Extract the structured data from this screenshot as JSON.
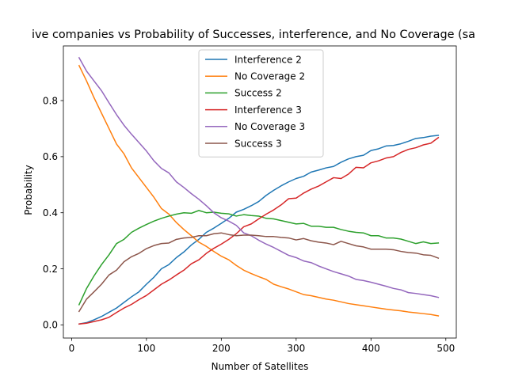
{
  "chart_data": {
    "type": "line",
    "title": "ive companies vs Probability of Successes, interference, and No Coverage (sa",
    "xlabel": "Number of Satellites",
    "ylabel": "Probability",
    "xlim": [
      -11,
      514
    ],
    "ylim": [
      -0.047,
      0.995
    ],
    "xticks": [
      0,
      100,
      200,
      300,
      400,
      500
    ],
    "yticks": [
      0.0,
      0.2,
      0.4,
      0.6,
      0.8
    ],
    "grid": false,
    "legend_position": "upper center",
    "x": [
      10,
      20,
      30,
      40,
      50,
      60,
      70,
      80,
      90,
      100,
      110,
      120,
      130,
      140,
      150,
      160,
      170,
      180,
      190,
      200,
      210,
      220,
      230,
      240,
      250,
      260,
      270,
      280,
      290,
      300,
      310,
      320,
      330,
      340,
      350,
      360,
      370,
      380,
      390,
      400,
      410,
      420,
      430,
      440,
      450,
      460,
      470,
      480,
      490
    ],
    "series": [
      {
        "name": "Interference 2",
        "color": "#1f77b4",
        "values": [
          0.003,
          0.008,
          0.018,
          0.03,
          0.045,
          0.06,
          0.08,
          0.1,
          0.118,
          0.145,
          0.17,
          0.2,
          0.215,
          0.24,
          0.26,
          0.285,
          0.305,
          0.33,
          0.345,
          0.362,
          0.38,
          0.402,
          0.412,
          0.425,
          0.44,
          0.462,
          0.48,
          0.496,
          0.51,
          0.522,
          0.53,
          0.545,
          0.552,
          0.56,
          0.565,
          0.58,
          0.592,
          0.6,
          0.605,
          0.622,
          0.628,
          0.638,
          0.64,
          0.646,
          0.655,
          0.665,
          0.668,
          0.673,
          0.676
        ]
      },
      {
        "name": "No Coverage 2",
        "color": "#ff7f0e",
        "values": [
          0.925,
          0.87,
          0.81,
          0.755,
          0.7,
          0.645,
          0.61,
          0.56,
          0.525,
          0.49,
          0.455,
          0.415,
          0.395,
          0.365,
          0.34,
          0.318,
          0.295,
          0.28,
          0.262,
          0.245,
          0.232,
          0.212,
          0.195,
          0.183,
          0.172,
          0.162,
          0.145,
          0.136,
          0.128,
          0.118,
          0.108,
          0.104,
          0.098,
          0.092,
          0.088,
          0.082,
          0.076,
          0.072,
          0.068,
          0.064,
          0.06,
          0.056,
          0.053,
          0.05,
          0.046,
          0.043,
          0.04,
          0.037,
          0.032
        ]
      },
      {
        "name": "Success 2",
        "color": "#2ca02c",
        "values": [
          0.072,
          0.13,
          0.175,
          0.215,
          0.25,
          0.29,
          0.305,
          0.33,
          0.345,
          0.358,
          0.37,
          0.38,
          0.388,
          0.395,
          0.4,
          0.398,
          0.408,
          0.4,
          0.402,
          0.398,
          0.396,
          0.388,
          0.393,
          0.39,
          0.388,
          0.38,
          0.378,
          0.372,
          0.366,
          0.36,
          0.362,
          0.352,
          0.352,
          0.348,
          0.348,
          0.34,
          0.334,
          0.33,
          0.328,
          0.318,
          0.318,
          0.31,
          0.31,
          0.306,
          0.298,
          0.29,
          0.296,
          0.29,
          0.292
        ]
      },
      {
        "name": "Interference 3",
        "color": "#d62728",
        "values": [
          0.003,
          0.006,
          0.012,
          0.018,
          0.027,
          0.044,
          0.06,
          0.073,
          0.09,
          0.105,
          0.125,
          0.145,
          0.16,
          0.178,
          0.195,
          0.218,
          0.232,
          0.255,
          0.273,
          0.288,
          0.305,
          0.325,
          0.35,
          0.36,
          0.378,
          0.395,
          0.41,
          0.428,
          0.45,
          0.452,
          0.47,
          0.484,
          0.495,
          0.51,
          0.525,
          0.522,
          0.538,
          0.562,
          0.56,
          0.578,
          0.585,
          0.595,
          0.6,
          0.615,
          0.626,
          0.632,
          0.642,
          0.648,
          0.668
        ]
      },
      {
        "name": "No Coverage 3",
        "color": "#9467bd",
        "values": [
          0.953,
          0.905,
          0.87,
          0.835,
          0.792,
          0.75,
          0.712,
          0.68,
          0.65,
          0.62,
          0.585,
          0.558,
          0.542,
          0.51,
          0.49,
          0.468,
          0.448,
          0.425,
          0.4,
          0.382,
          0.37,
          0.355,
          0.328,
          0.318,
          0.302,
          0.288,
          0.276,
          0.262,
          0.248,
          0.24,
          0.228,
          0.222,
          0.21,
          0.2,
          0.19,
          0.182,
          0.174,
          0.162,
          0.158,
          0.152,
          0.145,
          0.138,
          0.13,
          0.125,
          0.115,
          0.112,
          0.108,
          0.104,
          0.098
        ]
      },
      {
        "name": "Success 3",
        "color": "#8c564b",
        "values": [
          0.048,
          0.092,
          0.118,
          0.145,
          0.178,
          0.195,
          0.225,
          0.243,
          0.255,
          0.272,
          0.283,
          0.29,
          0.292,
          0.305,
          0.31,
          0.312,
          0.318,
          0.318,
          0.325,
          0.328,
          0.322,
          0.318,
          0.32,
          0.32,
          0.318,
          0.315,
          0.315,
          0.312,
          0.31,
          0.303,
          0.308,
          0.3,
          0.295,
          0.292,
          0.286,
          0.298,
          0.29,
          0.282,
          0.278,
          0.27,
          0.27,
          0.27,
          0.268,
          0.262,
          0.258,
          0.256,
          0.25,
          0.248,
          0.238
        ]
      }
    ]
  }
}
